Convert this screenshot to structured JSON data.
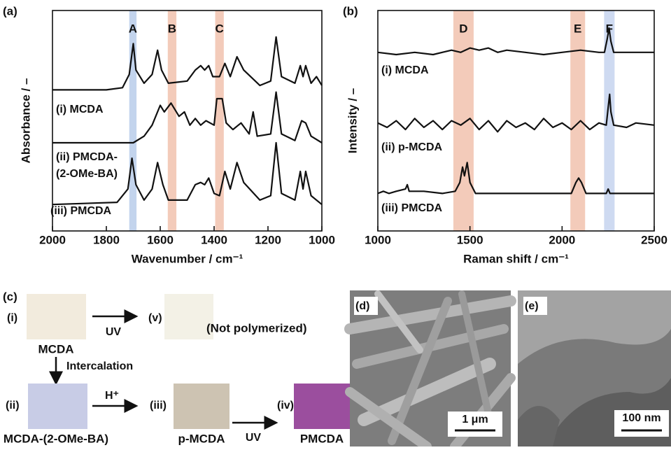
{
  "chart_data": [
    {
      "type": "line",
      "label": "(a)",
      "xlabel": "Wavenumber / cm⁻¹",
      "ylabel": "Absorbance / –",
      "xlim": [
        2000,
        1000
      ],
      "xticks": [
        2000,
        1800,
        1600,
        1400,
        1200,
        1000
      ],
      "ylim": [
        0,
        100
      ],
      "color": "#111111",
      "bands": [
        {
          "label": "A",
          "from": 1715,
          "to": 1688,
          "color": "#b9cdea"
        },
        {
          "label": "B",
          "from": 1572,
          "to": 1540,
          "color": "#f1c2ae"
        },
        {
          "label": "C",
          "from": 1396,
          "to": 1364,
          "color": "#f1c2ae"
        }
      ],
      "series": [
        {
          "label_lines": [
            "(i) MCDA"
          ],
          "x": [
            2000,
            1800,
            1740,
            1715,
            1700,
            1690,
            1660,
            1630,
            1610,
            1595,
            1570,
            1500,
            1470,
            1450,
            1435,
            1420,
            1405,
            1380,
            1360,
            1340,
            1315,
            1290,
            1230,
            1190,
            1170,
            1150,
            1100,
            1080,
            1070,
            1060,
            1040,
            1020,
            1000
          ],
          "values": [
            64,
            64,
            65,
            71,
            85,
            73,
            67,
            71,
            82,
            73,
            67,
            68,
            73,
            75,
            73,
            75,
            70,
            70,
            76,
            70,
            79,
            73,
            66,
            68,
            88,
            70,
            67,
            75,
            70,
            75,
            67,
            70,
            66
          ]
        },
        {
          "label_lines": [
            "(ii) PMCDA-",
            "(2-OMe-BA)"
          ],
          "x": [
            2000,
            1700,
            1660,
            1630,
            1600,
            1585,
            1560,
            1530,
            1510,
            1490,
            1470,
            1450,
            1430,
            1400,
            1390,
            1370,
            1355,
            1330,
            1300,
            1270,
            1255,
            1240,
            1190,
            1170,
            1150,
            1100,
            1075,
            1060,
            1040,
            1000
          ],
          "values": [
            40,
            40,
            43,
            48,
            57,
            54,
            58,
            52,
            54,
            48,
            51,
            48,
            50,
            48,
            60,
            60,
            49,
            46,
            49,
            44,
            54,
            43,
            44,
            63,
            44,
            41,
            50,
            49,
            43,
            40
          ]
        },
        {
          "label_lines": [
            "(iii) PMCDA"
          ],
          "x": [
            2000,
            1760,
            1720,
            1705,
            1690,
            1660,
            1630,
            1610,
            1590,
            1570,
            1500,
            1470,
            1450,
            1435,
            1420,
            1400,
            1380,
            1360,
            1340,
            1315,
            1290,
            1230,
            1190,
            1170,
            1150,
            1100,
            1080,
            1070,
            1060,
            1040,
            1000
          ],
          "values": [
            12,
            13,
            19,
            33,
            21,
            14,
            19,
            31,
            21,
            14,
            14,
            21,
            22,
            21,
            24,
            17,
            16,
            27,
            19,
            31,
            22,
            14,
            16,
            40,
            17,
            14,
            27,
            19,
            27,
            16,
            12
          ]
        }
      ]
    },
    {
      "type": "line",
      "label": "(b)",
      "xlabel": "Raman shift / cm⁻¹",
      "ylabel": "Intensity / –",
      "xlim": [
        1000,
        2500
      ],
      "xticks": [
        1000,
        1500,
        2000,
        2500
      ],
      "ylim": [
        0,
        100
      ],
      "color": "#111111",
      "bands": [
        {
          "label": "D",
          "from": 1410,
          "to": 1520,
          "color": "#f1c2ae"
        },
        {
          "label": "E",
          "from": 2045,
          "to": 2125,
          "color": "#f1c2ae"
        },
        {
          "label": "F",
          "from": 2228,
          "to": 2285,
          "color": "#c6d4ee"
        }
      ],
      "series": [
        {
          "label_lines": [
            "(i) MCDA"
          ],
          "x": [
            1000,
            1100,
            1200,
            1300,
            1400,
            1450,
            1500,
            1550,
            1600,
            1650,
            1700,
            1800,
            1900,
            2000,
            2100,
            2200,
            2230,
            2245,
            2255,
            2265,
            2280,
            2350,
            2500
          ],
          "values": [
            81,
            80,
            81,
            80,
            82,
            81,
            83,
            82,
            83,
            81,
            82,
            81,
            80,
            81,
            82,
            81,
            81,
            87,
            92,
            86,
            81,
            81,
            81
          ]
        },
        {
          "label_lines": [
            "(ii) p-MCDA"
          ],
          "x": [
            1000,
            1050,
            1100,
            1150,
            1200,
            1250,
            1300,
            1350,
            1400,
            1450,
            1500,
            1550,
            1600,
            1650,
            1700,
            1750,
            1800,
            1850,
            1900,
            1950,
            2000,
            2050,
            2100,
            2150,
            2200,
            2240,
            2250,
            2258,
            2265,
            2280,
            2350,
            2400,
            2500
          ],
          "values": [
            49,
            47,
            50,
            46,
            51,
            47,
            50,
            46,
            50,
            48,
            51,
            46,
            50,
            45,
            50,
            47,
            49,
            46,
            51,
            47,
            49,
            46,
            50,
            46,
            49,
            48,
            56,
            62,
            54,
            48,
            47,
            49,
            48
          ]
        },
        {
          "label_lines": [
            "(iii) PMCDA"
          ],
          "x": [
            1000,
            1030,
            1060,
            1100,
            1150,
            1160,
            1170,
            1250,
            1350,
            1420,
            1445,
            1460,
            1470,
            1485,
            1500,
            1530,
            1700,
            1900,
            2050,
            2075,
            2090,
            2105,
            2130,
            2240,
            2250,
            2260,
            2500
          ],
          "values": [
            17,
            18,
            17,
            18,
            19,
            21,
            18,
            18,
            17,
            18,
            22,
            29,
            25,
            31,
            22,
            17,
            17,
            17,
            17,
            22,
            24,
            22,
            17,
            17,
            19,
            17,
            17
          ]
        }
      ]
    }
  ],
  "scheme": {
    "label": "(c)",
    "samples": [
      {
        "id": "(i)",
        "name": "MCDA",
        "color": "#f2ebdd"
      },
      {
        "id": "(v)",
        "name": "(Not polymerized)",
        "color": "#f3f1e6"
      },
      {
        "id": "(ii)",
        "name": "MCDA-(2-OMe-BA)",
        "color": "#c8cce6"
      },
      {
        "id": "(iii)",
        "name": "p-MCDA",
        "color": "#cdc3b2"
      },
      {
        "id": "(iv)",
        "name": "PMCDA",
        "color": "#9b4e9e"
      }
    ],
    "steps": [
      "UV",
      "Intercalation",
      "H⁺",
      "UV"
    ]
  },
  "images": [
    {
      "label": "(d)",
      "scale": "1 μm"
    },
    {
      "label": "(e)",
      "scale": "100 nm"
    }
  ]
}
